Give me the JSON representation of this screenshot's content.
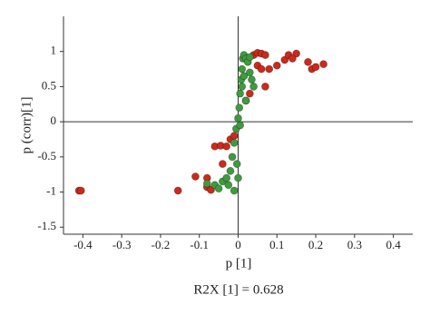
{
  "chart_data": {
    "type": "scatter",
    "xlabel": "p [1]",
    "ylabel": "p (corr)[1]",
    "annotation": "R2X [1] = 0.628",
    "xlim": [
      -0.45,
      0.45
    ],
    "ylim": [
      -1.6,
      1.5
    ],
    "xticks": [
      -0.4,
      -0.3,
      -0.2,
      -0.1,
      0,
      0.1,
      0.2,
      0.3,
      0.4
    ],
    "yticks": [
      -1.5,
      -1,
      -0.5,
      0,
      0.5,
      1
    ],
    "series": [
      {
        "color": "#cc2a1a",
        "x": [
          -0.41,
          -0.405,
          -0.155,
          -0.11,
          -0.08,
          -0.07,
          -0.06,
          -0.045,
          -0.03,
          -0.02,
          -0.01,
          0.04,
          0.05,
          0.06,
          0.07,
          0.05,
          0.06,
          0.08,
          0.1,
          0.12,
          0.13,
          0.15,
          0.14,
          0.18,
          0.19,
          0.2,
          0.22,
          0.07,
          0.03,
          0.02,
          -0.08,
          -0.04
        ],
        "values": [
          -0.98,
          -0.98,
          -0.98,
          -0.78,
          -0.93,
          -0.97,
          -0.35,
          -0.34,
          -0.35,
          -0.25,
          -0.2,
          0.95,
          0.98,
          0.97,
          0.95,
          0.8,
          0.75,
          0.75,
          0.8,
          0.88,
          0.95,
          0.97,
          0.9,
          0.85,
          0.75,
          0.78,
          0.82,
          0.5,
          0.4,
          0.3,
          -0.8,
          -0.6
        ]
      },
      {
        "color": "#3f9b3f",
        "x": [
          -0.08,
          -0.06,
          -0.05,
          -0.04,
          -0.03,
          -0.02,
          -0.015,
          -0.01,
          -0.005,
          0,
          0.003,
          0.005,
          0.008,
          0.01,
          0.012,
          0.015,
          0.02,
          0.025,
          0.03,
          0.035,
          0.04,
          0.005,
          -0.003,
          0,
          -0.01,
          0.01,
          0.02,
          0.015,
          0.03,
          -0.025
        ],
        "values": [
          -0.88,
          -0.9,
          -0.95,
          -0.85,
          -0.8,
          -0.7,
          -0.5,
          -0.3,
          -0.1,
          0.05,
          0.2,
          0.4,
          0.6,
          0.75,
          0.9,
          0.95,
          0.9,
          0.85,
          0.7,
          0.6,
          0.5,
          -0.05,
          -0.6,
          -0.8,
          -0.98,
          0.5,
          0.3,
          0.65,
          0.92,
          -0.9
        ]
      }
    ]
  }
}
